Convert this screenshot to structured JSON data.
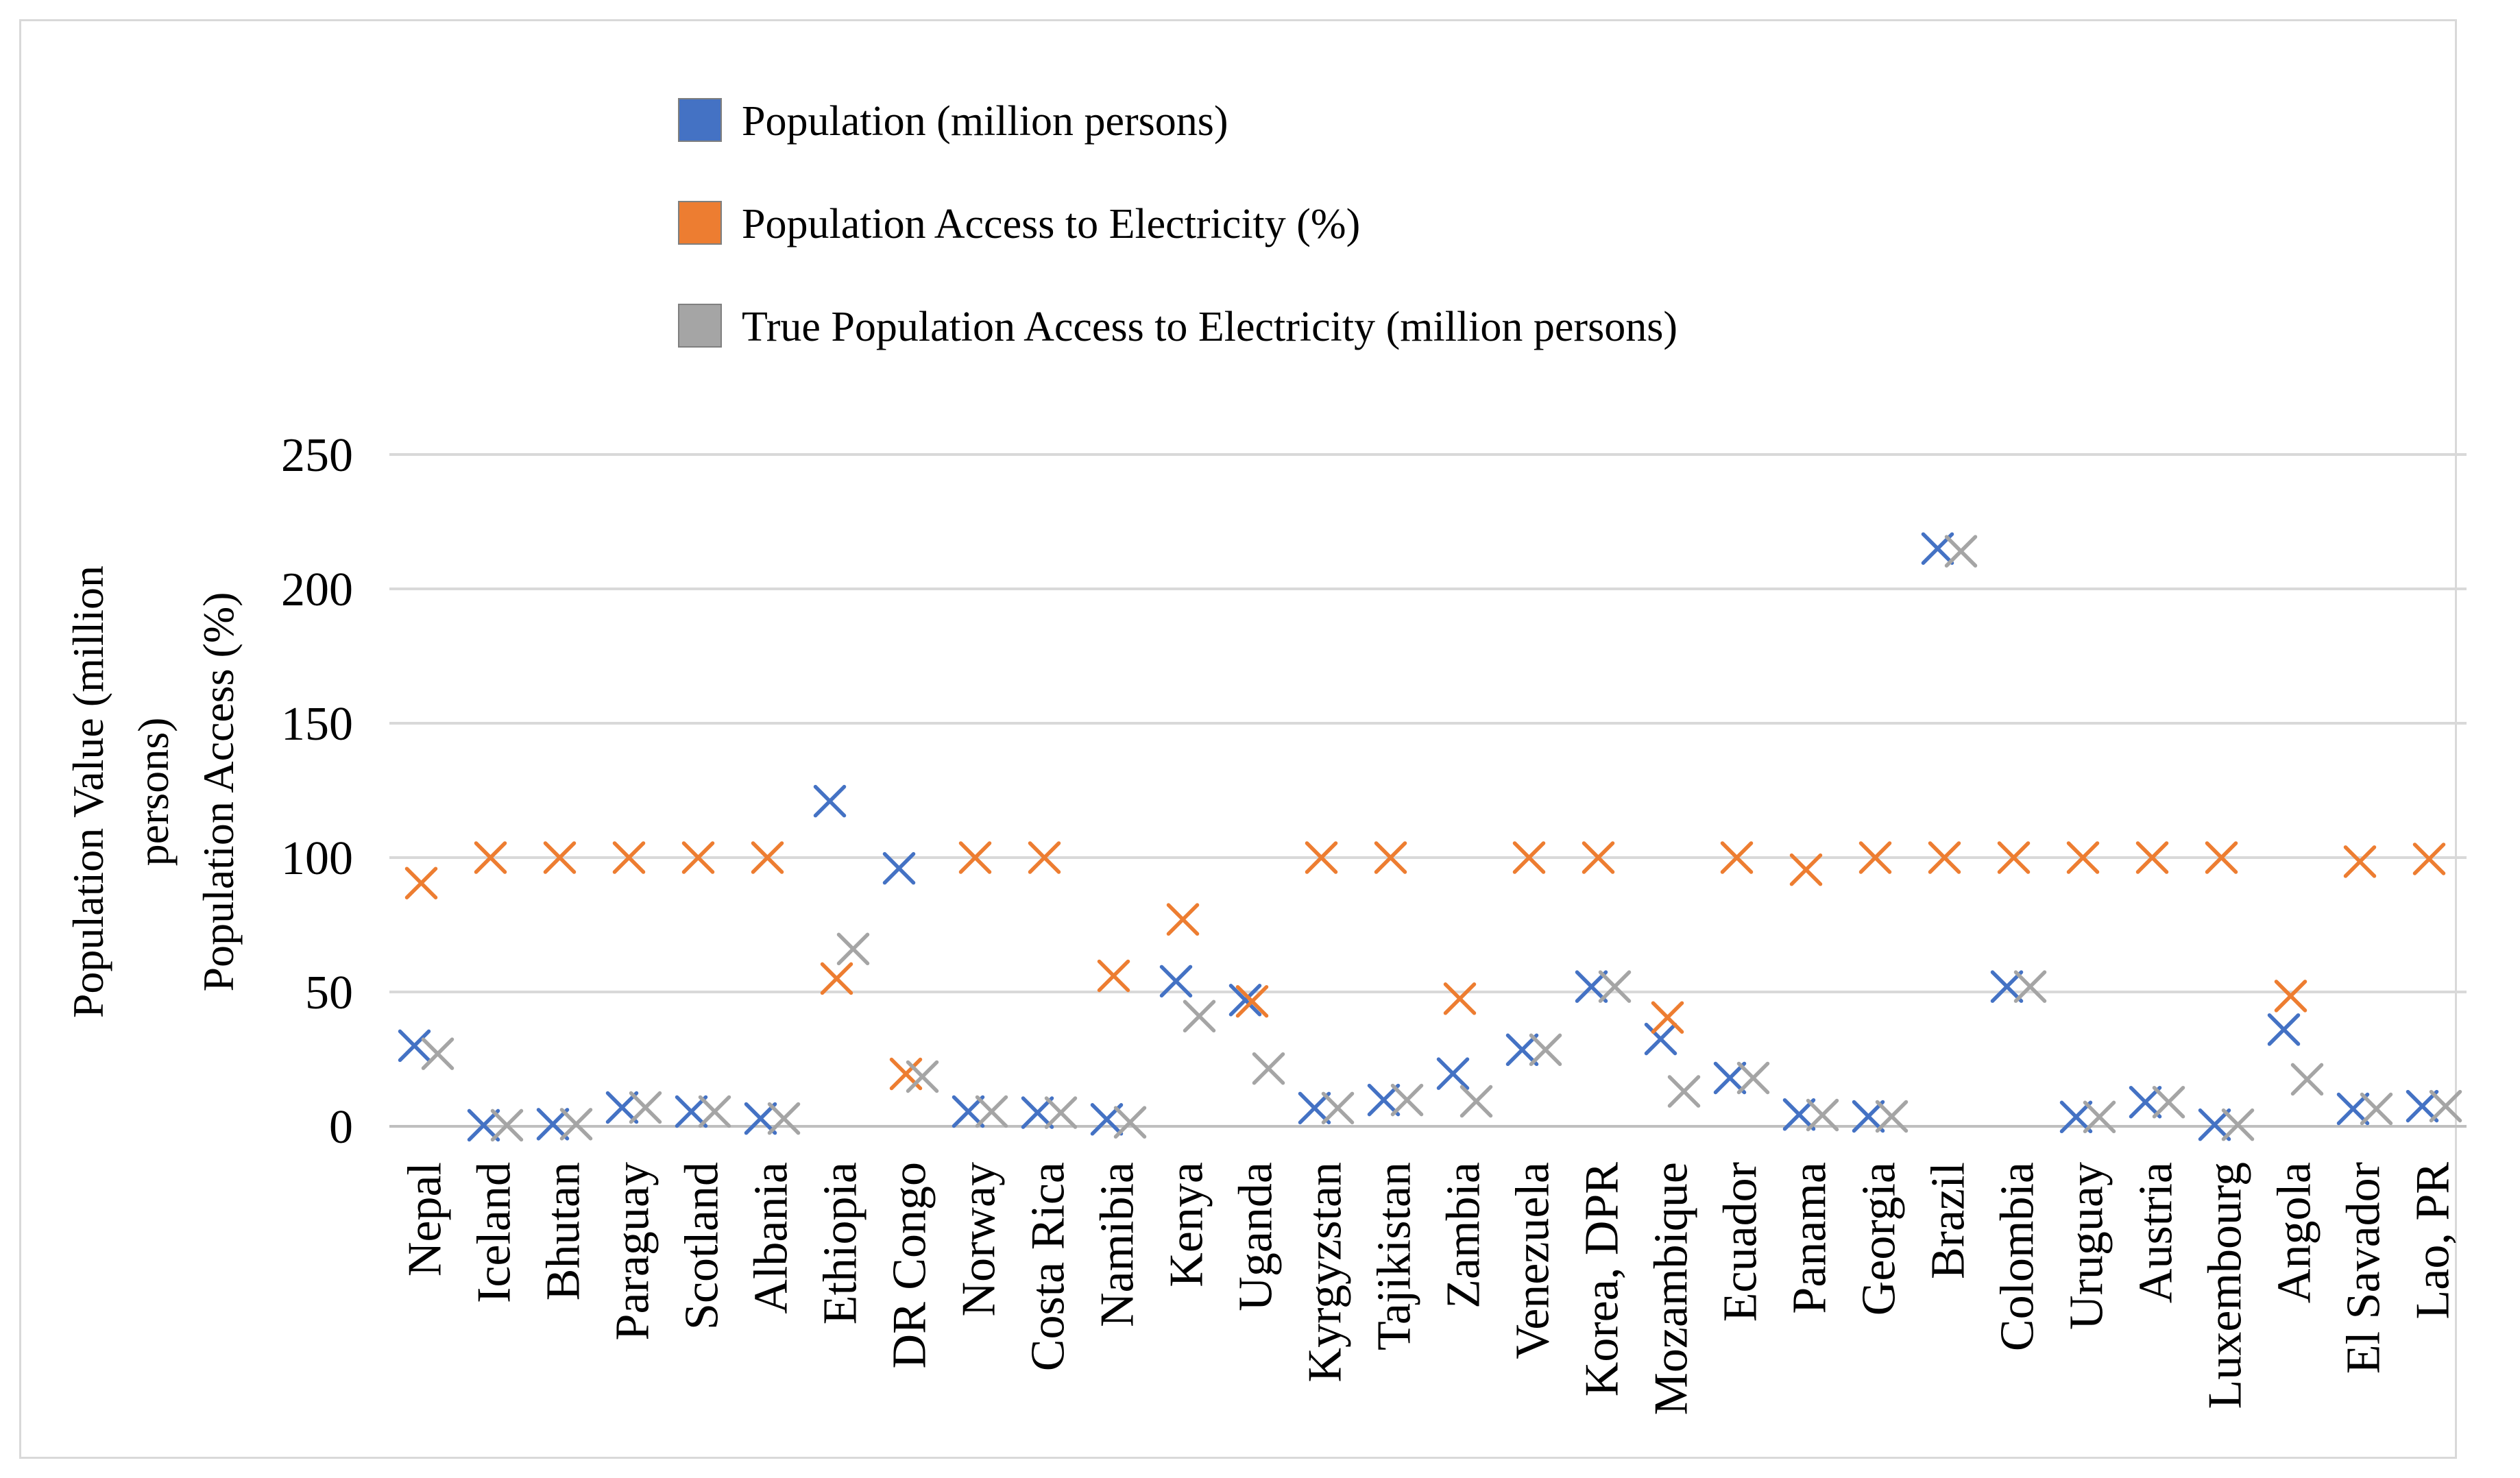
{
  "chart_data": {
    "type": "scatter",
    "title": "",
    "xlabel": "",
    "ylabel_lines": [
      "Population Value (million",
      "persons)",
      "Population Access (%)"
    ],
    "ylim": [
      0,
      250
    ],
    "yticks": [
      0,
      50,
      100,
      150,
      200,
      250
    ],
    "grid": true,
    "legend_position": "top",
    "categories": [
      "Nepal",
      "Iceland",
      "Bhutan",
      "Paraguay",
      "Scotland",
      "Albania",
      "Ethiopia",
      "DR Congo",
      "Norway",
      "Costa Rica",
      "Namibia",
      "Kenya",
      "Uganda",
      "Kyrgyzstan",
      "Tajikistan",
      "Zambia",
      "Venezuela",
      "Korea, DPR",
      "Mozambique",
      "Ecuador",
      "Panama",
      "Georgia",
      "Brazil",
      "Colombia",
      "Uruguay",
      "Austria",
      "Luxembourg",
      "Angola",
      "El Savador",
      "Lao, PR"
    ],
    "series": [
      {
        "name": "Population (million persons)",
        "color": "#4472c4",
        "values": [
          30,
          0.4,
          0.8,
          7,
          5.5,
          2.9,
          121,
          96,
          5.5,
          5.1,
          2.6,
          54,
          47,
          6.8,
          9.8,
          19.6,
          28.5,
          52,
          32.5,
          18,
          4.4,
          3.7,
          215,
          52,
          3.5,
          9,
          0.6,
          36,
          6.5,
          7.5
        ]
      },
      {
        "name": "Population Access to Electricity (%)",
        "color": "#ed7d31",
        "values": [
          90.5,
          100,
          100,
          100,
          100,
          100,
          55,
          19.5,
          100,
          100,
          56,
          77,
          46.5,
          100,
          100,
          47.5,
          100,
          100,
          40.5,
          100,
          95.5,
          100,
          100,
          100,
          100,
          100,
          100,
          48.5,
          98.5,
          99.5
        ]
      },
      {
        "name": "True Population Access to Electricity  (million persons)",
        "color": "#a5a5a5",
        "values": [
          27,
          0.4,
          0.8,
          7,
          5.5,
          2.9,
          66,
          18.5,
          5.5,
          5.1,
          1.5,
          41,
          21.5,
          6.8,
          9.8,
          9.3,
          28.5,
          52,
          13,
          18,
          4.2,
          3.7,
          214,
          52,
          3.5,
          9,
          0.6,
          17.5,
          6.5,
          7.5
        ]
      }
    ]
  }
}
